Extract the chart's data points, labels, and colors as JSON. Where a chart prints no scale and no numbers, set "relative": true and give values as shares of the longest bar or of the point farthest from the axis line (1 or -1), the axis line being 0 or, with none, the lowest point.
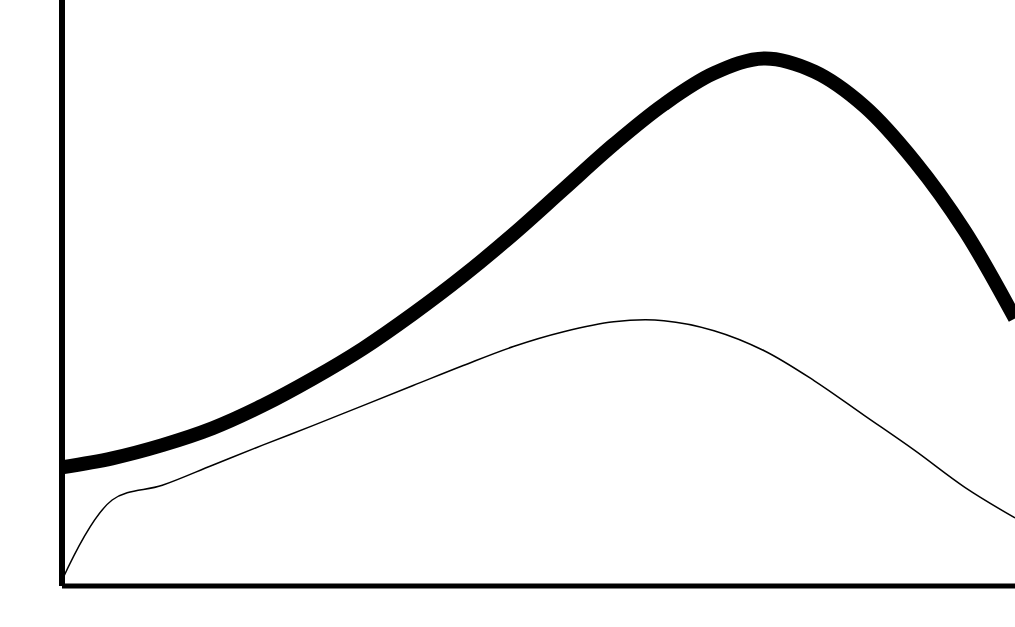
{
  "chart_data": {
    "type": "line",
    "relative": true,
    "categories": [
      null,
      null,
      null,
      null,
      null,
      null,
      null,
      null,
      null,
      null,
      null,
      null,
      null,
      null,
      null,
      null,
      null,
      null,
      null,
      null
    ],
    "series": [
      {
        "color": "#000000",
        "values": [
          0.225,
          0.242,
          0.267,
          0.299,
          0.342,
          0.393,
          0.45,
          0.516,
          0.588,
          0.667,
          0.752,
          0.837,
          0.913,
          0.972,
          1,
          0.975,
          0.909,
          0.805,
          0.673,
          0.507
        ]
      },
      {
        "color": "#000000",
        "values": [
          0.011,
          0.163,
          0.191,
          0.229,
          0.267,
          0.304,
          0.342,
          0.38,
          0.418,
          0.454,
          0.482,
          0.501,
          0.503,
          0.484,
          0.446,
          0.389,
          0.323,
          0.257,
          0.187,
          0.129
        ]
      }
    ]
  }
}
